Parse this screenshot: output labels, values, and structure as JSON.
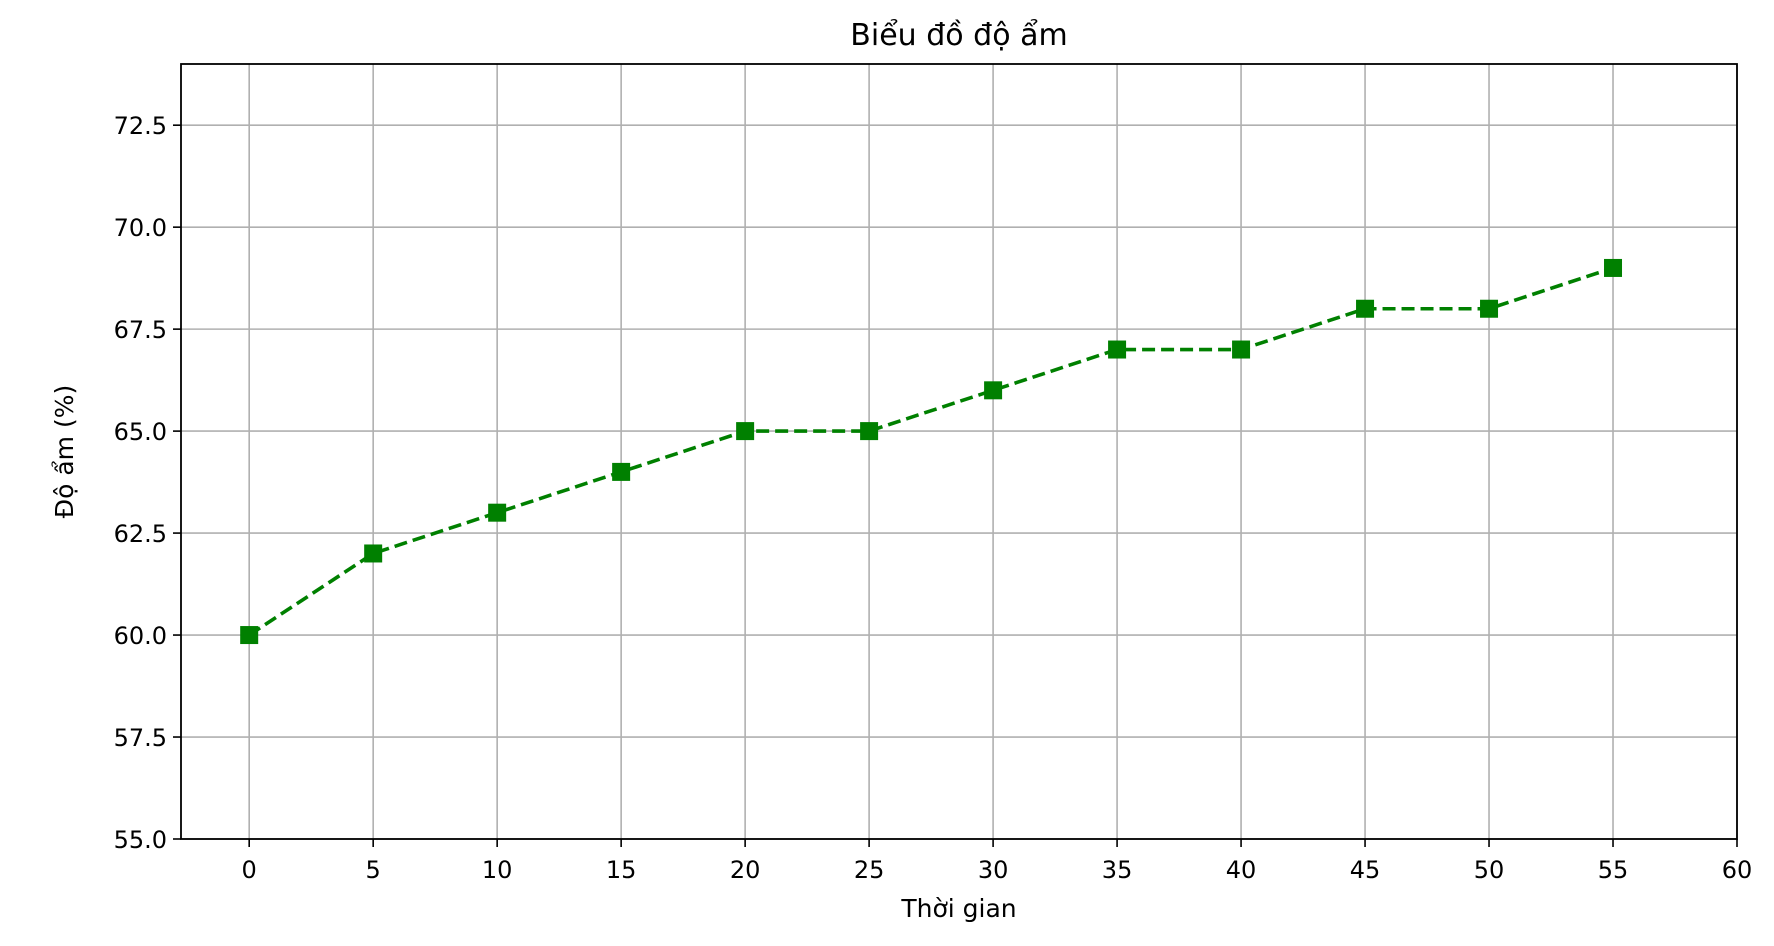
{
  "chart_data": {
    "type": "line",
    "title": "Biểu đồ độ ẩm",
    "xlabel": "Thời gian",
    "ylabel": "Độ ẩm (%)",
    "x": [
      0,
      5,
      10,
      15,
      20,
      25,
      30,
      35,
      40,
      45,
      50,
      55
    ],
    "series": [
      {
        "values": [
          60,
          62,
          63,
          64,
          65,
          65,
          66,
          67,
          67,
          68,
          68,
          69
        ],
        "color": "#008000",
        "line_style": "dashed",
        "marker": "square"
      }
    ],
    "xlim": [
      -2.75,
      60
    ],
    "ylim": [
      55,
      74
    ],
    "x_ticks": [
      "0",
      "5",
      "10",
      "15",
      "20",
      "25",
      "30",
      "35",
      "40",
      "45",
      "50",
      "55",
      "60"
    ],
    "y_ticks": [
      "55.0",
      "57.5",
      "60.0",
      "62.5",
      "65.0",
      "67.5",
      "70.0",
      "72.5"
    ],
    "grid": true,
    "legend": "none"
  }
}
